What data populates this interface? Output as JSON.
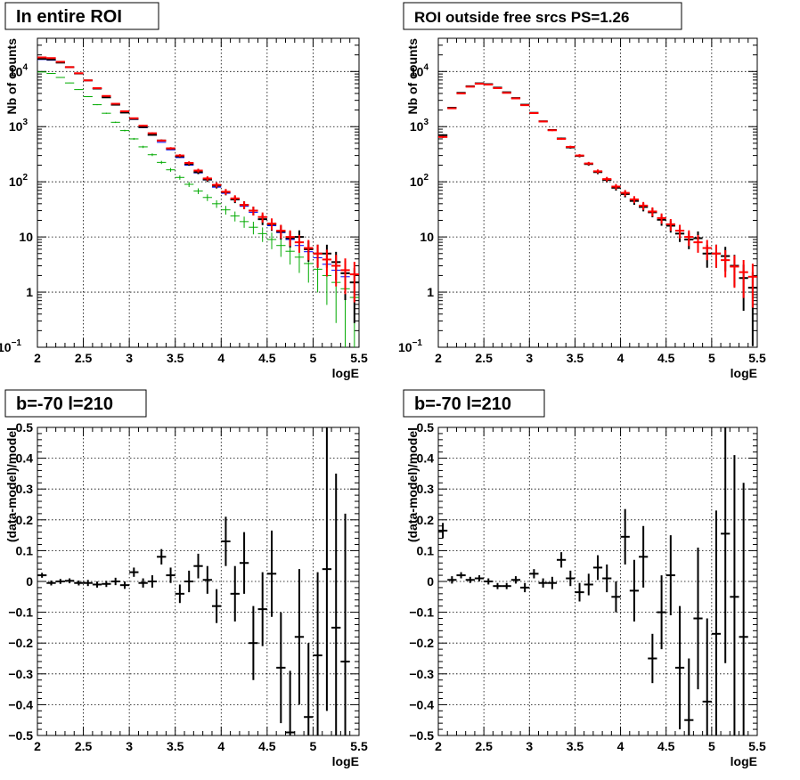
{
  "chart_data": [
    {
      "type": "scatter",
      "title": "In entire ROI",
      "xlabel": "logE",
      "ylabel": "Nb of counts",
      "xlim": [
        2,
        5.5
      ],
      "ylim": [
        0.1,
        40000
      ],
      "yscale": "log",
      "grid": true,
      "xticks": [
        "2",
        "2.5",
        "3",
        "3.5",
        "4",
        "4.5",
        "5",
        "5.5"
      ],
      "yticks": [
        {
          "v": 0.1,
          "base": "10",
          "exp": "−1"
        },
        {
          "v": 1,
          "text": "1"
        },
        {
          "v": 10,
          "text": "10"
        },
        {
          "v": 100,
          "base": "10",
          "exp": "2"
        },
        {
          "v": 1000,
          "base": "10",
          "exp": "3"
        },
        {
          "v": 10000,
          "base": "10",
          "exp": "4"
        }
      ],
      "x": [
        2.05,
        2.15,
        2.25,
        2.35,
        2.45,
        2.55,
        2.65,
        2.75,
        2.85,
        2.95,
        3.05,
        3.15,
        3.25,
        3.35,
        3.45,
        3.55,
        3.65,
        3.75,
        3.85,
        3.95,
        4.05,
        4.15,
        4.25,
        4.35,
        4.45,
        4.55,
        4.65,
        4.75,
        4.85,
        4.95,
        5.05,
        5.15,
        5.25,
        5.35,
        5.45
      ],
      "series": [
        {
          "color": "#0000ff",
          "errors": false,
          "values": [
            16500,
            16000,
            14500,
            11800,
            9100,
            6800,
            4900,
            3500,
            2500,
            1800,
            1350,
            960,
            700,
            520,
            380,
            275,
            200,
            145,
            108,
            80,
            62,
            47,
            36,
            28,
            21,
            16,
            12,
            9,
            7,
            5.4,
            4.2,
            3.2,
            2.5,
            1.9,
            1.5
          ]
        },
        {
          "color": "#00aa00",
          "errors": true,
          "values": [
            9800,
            9200,
            7800,
            6200,
            4700,
            3500,
            2500,
            1750,
            1200,
            850,
            600,
            430,
            310,
            225,
            165,
            120,
            90,
            68,
            52,
            40,
            31,
            24,
            19,
            15,
            11.5,
            9,
            7,
            5.5,
            4.3,
            3.3,
            2.6,
            2,
            1.5,
            1.15,
            0.8
          ]
        },
        {
          "color": "#000000",
          "errors": true,
          "values": [
            17000,
            16500,
            14500,
            12000,
            9200,
            6900,
            4900,
            3400,
            2500,
            1800,
            1380,
            980,
            710,
            560,
            400,
            290,
            210,
            150,
            110,
            85,
            65,
            48,
            38,
            30,
            21,
            17,
            12.5,
            9.5,
            10,
            6,
            5,
            5,
            3.5,
            2.2,
            1.5
          ]
        },
        {
          "color": "#ff0000",
          "errors": true,
          "values": [
            18000,
            17500,
            15000,
            12000,
            9300,
            6900,
            5000,
            3600,
            2600,
            1900,
            1420,
            1040,
            760,
            560,
            405,
            300,
            220,
            160,
            115,
            88,
            66,
            50,
            38,
            30,
            23,
            17.5,
            13,
            10,
            8,
            6.3,
            5,
            3.9,
            3,
            2.5,
            2.1
          ]
        }
      ]
    },
    {
      "type": "scatter",
      "title": "ROI outside free srcs PS=1.26",
      "xlabel": "logE",
      "ylabel": "Nb of counts",
      "xlim": [
        2,
        5.5
      ],
      "ylim": [
        0.1,
        40000
      ],
      "yscale": "log",
      "grid": true,
      "xticks": [
        "2",
        "2.5",
        "3",
        "3.5",
        "4",
        "4.5",
        "5",
        "5.5"
      ],
      "yticks": [
        {
          "v": 0.1,
          "base": "10",
          "exp": "−1"
        },
        {
          "v": 1,
          "text": "1"
        },
        {
          "v": 10,
          "text": "10"
        },
        {
          "v": 100,
          "base": "10",
          "exp": "2"
        },
        {
          "v": 1000,
          "base": "10",
          "exp": "3"
        },
        {
          "v": 10000,
          "base": "10",
          "exp": "4"
        }
      ],
      "x": [
        2.05,
        2.15,
        2.25,
        2.35,
        2.45,
        2.55,
        2.65,
        2.75,
        2.85,
        2.95,
        3.05,
        3.15,
        3.25,
        3.35,
        3.45,
        3.55,
        3.65,
        3.75,
        3.85,
        3.95,
        4.05,
        4.15,
        4.25,
        4.35,
        4.45,
        4.55,
        4.65,
        4.75,
        4.85,
        4.95,
        5.05,
        5.15,
        5.25,
        5.35,
        5.45
      ],
      "series": [
        {
          "color": "#000000",
          "errors": true,
          "values": [
            700,
            2200,
            4100,
            5400,
            6100,
            5900,
            5100,
            4200,
            3300,
            2500,
            1780,
            1250,
            870,
            610,
            420,
            295,
            210,
            150,
            108,
            78,
            60,
            45,
            35,
            28,
            20.5,
            16,
            11.5,
            9,
            9.5,
            5,
            5,
            4.5,
            3,
            1.8,
            1.2
          ]
        },
        {
          "color": "#ff0000",
          "errors": true,
          "values": [
            650,
            2150,
            4000,
            5300,
            6000,
            5800,
            5000,
            4100,
            3250,
            2450,
            1760,
            1240,
            860,
            600,
            430,
            300,
            215,
            155,
            112,
            82,
            63,
            48,
            37,
            29,
            22,
            17,
            13,
            10,
            8,
            6.3,
            5,
            3.8,
            2.9,
            2.3,
            1.9
          ]
        }
      ]
    },
    {
      "type": "scatter",
      "title": "b=-70 l=210",
      "xlabel": "logE",
      "ylabel": "(data-model)/model",
      "xlim": [
        2,
        5.5
      ],
      "ylim": [
        -0.5,
        0.5
      ],
      "grid": true,
      "xticks": [
        "2",
        "2.5",
        "3",
        "3.5",
        "4",
        "4.5",
        "5",
        "5.5"
      ],
      "yticks": [
        {
          "v": -0.5,
          "text": "−0.5"
        },
        {
          "v": -0.4,
          "text": "−0.4"
        },
        {
          "v": -0.3,
          "text": "−0.3"
        },
        {
          "v": -0.2,
          "text": "−0.2"
        },
        {
          "v": -0.1,
          "text": "−0.1"
        },
        {
          "v": 0,
          "text": "0"
        },
        {
          "v": 0.1,
          "text": "0.1"
        },
        {
          "v": 0.2,
          "text": "0.2"
        },
        {
          "v": 0.3,
          "text": "0.3"
        },
        {
          "v": 0.4,
          "text": "0.4"
        },
        {
          "v": 0.5,
          "text": "0.5"
        }
      ],
      "x": [
        2.05,
        2.15,
        2.25,
        2.35,
        2.45,
        2.55,
        2.65,
        2.75,
        2.85,
        2.95,
        3.05,
        3.15,
        3.25,
        3.35,
        3.45,
        3.55,
        3.65,
        3.75,
        3.85,
        3.95,
        4.05,
        4.15,
        4.25,
        4.35,
        4.45,
        4.55,
        4.65,
        4.75,
        4.85,
        4.95,
        5.05,
        5.15,
        5.25,
        5.35
      ],
      "series": [
        {
          "color": "#000000",
          "errors": true,
          "values": [
            0.02,
            -0.005,
            0,
            0.002,
            -0.005,
            -0.005,
            -0.01,
            -0.008,
            0,
            -0.012,
            0.03,
            -0.005,
            0,
            0.08,
            0.02,
            -0.04,
            0,
            0.05,
            0.005,
            -0.08,
            0.13,
            -0.04,
            0.06,
            -0.2,
            -0.09,
            0.025,
            -0.28,
            -0.49,
            -0.18,
            -0.44,
            -0.24,
            0.04,
            -0.15,
            -0.26
          ],
          "err": [
            0.008,
            0.008,
            0.008,
            0.008,
            0.008,
            0.01,
            0.01,
            0.01,
            0.012,
            0.012,
            0.015,
            0.015,
            0.02,
            0.025,
            0.025,
            0.03,
            0.035,
            0.04,
            0.045,
            0.055,
            0.08,
            0.09,
            0.1,
            0.12,
            0.12,
            0.14,
            0.18,
            0.2,
            0.22,
            0.24,
            0.27,
            0.46,
            0.5,
            0.48
          ]
        }
      ]
    },
    {
      "type": "scatter",
      "title": "b=-70 l=210",
      "xlabel": "logE",
      "ylabel": "(data-model)/model",
      "xlim": [
        2,
        5.5
      ],
      "ylim": [
        -0.5,
        0.5
      ],
      "grid": true,
      "xticks": [
        "2",
        "2.5",
        "3",
        "3.5",
        "4",
        "4.5",
        "5",
        "5.5"
      ],
      "yticks": [
        {
          "v": -0.5,
          "text": "−0.5"
        },
        {
          "v": -0.4,
          "text": "−0.4"
        },
        {
          "v": -0.3,
          "text": "−0.3"
        },
        {
          "v": -0.2,
          "text": "−0.2"
        },
        {
          "v": -0.1,
          "text": "−0.1"
        },
        {
          "v": 0,
          "text": "0"
        },
        {
          "v": 0.1,
          "text": "0.1"
        },
        {
          "v": 0.2,
          "text": "0.2"
        },
        {
          "v": 0.3,
          "text": "0.3"
        },
        {
          "v": 0.4,
          "text": "0.4"
        },
        {
          "v": 0.5,
          "text": "0.5"
        }
      ],
      "x": [
        2.05,
        2.15,
        2.25,
        2.35,
        2.45,
        2.55,
        2.65,
        2.75,
        2.85,
        2.95,
        3.05,
        3.15,
        3.25,
        3.35,
        3.45,
        3.55,
        3.65,
        3.75,
        3.85,
        3.95,
        4.05,
        4.15,
        4.25,
        4.35,
        4.45,
        4.55,
        4.65,
        4.75,
        4.85,
        4.95,
        5.05,
        5.15,
        5.25,
        5.35
      ],
      "series": [
        {
          "color": "#000000",
          "errors": true,
          "values": [
            0.165,
            0.005,
            0.02,
            0.005,
            0.01,
            0,
            -0.015,
            -0.015,
            0.005,
            -0.02,
            0.025,
            -0.005,
            -0.005,
            0.07,
            0.01,
            -0.035,
            -0.01,
            0.045,
            0.01,
            -0.05,
            0.145,
            -0.03,
            0.08,
            -0.25,
            -0.1,
            0.02,
            -0.28,
            -0.45,
            -0.12,
            -0.39,
            -0.17,
            0.155,
            -0.05,
            -0.18
          ],
          "err": [
            0.025,
            0.012,
            0.01,
            0.01,
            0.01,
            0.01,
            0.01,
            0.01,
            0.012,
            0.015,
            0.015,
            0.015,
            0.02,
            0.025,
            0.025,
            0.03,
            0.035,
            0.04,
            0.045,
            0.05,
            0.09,
            0.1,
            0.1,
            0.08,
            0.12,
            0.13,
            0.2,
            0.2,
            0.23,
            0.27,
            0.4,
            0.42,
            0.46,
            0.5
          ]
        }
      ]
    }
  ]
}
